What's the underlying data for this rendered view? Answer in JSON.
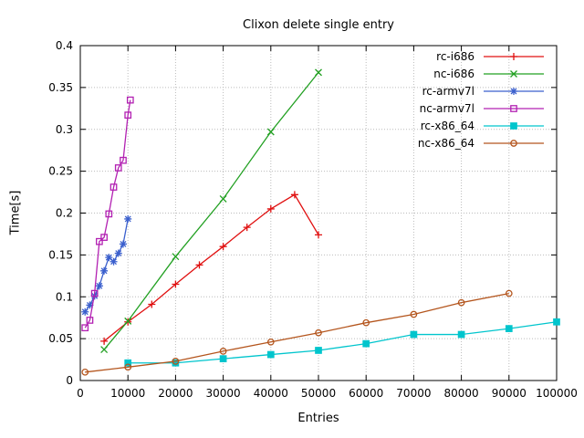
{
  "chart_data": {
    "type": "line",
    "title": "Clixon delete single entry",
    "xlabel": "Entries",
    "ylabel": "Time[s]",
    "xlim": [
      0,
      100000
    ],
    "ylim": [
      0,
      0.4
    ],
    "grid": true,
    "legend_position": "top-right-inside",
    "xticks": {
      "values": [
        0,
        10000,
        20000,
        30000,
        40000,
        50000,
        60000,
        70000,
        80000,
        90000,
        100000
      ],
      "labels": [
        "0",
        "10000",
        "20000",
        "30000",
        "40000",
        "50000",
        "60000",
        "70000",
        "80000",
        "90000",
        "100000"
      ]
    },
    "yticks": {
      "values": [
        0,
        0.05,
        0.1,
        0.15,
        0.2,
        0.25,
        0.3,
        0.35,
        0.4
      ],
      "labels": [
        "0",
        "0.05",
        "0.1",
        "0.15",
        "0.2",
        "0.25",
        "0.3",
        "0.35",
        "0.4"
      ]
    },
    "series": [
      {
        "name": "rc-i686",
        "color": "#e01010",
        "marker": "plus",
        "x": [
          5000,
          10000,
          15000,
          20000,
          25000,
          30000,
          35000,
          40000,
          45000,
          50000
        ],
        "y": [
          0.047,
          0.07,
          0.091,
          0.115,
          0.138,
          0.16,
          0.183,
          0.205,
          0.222,
          0.174
        ]
      },
      {
        "name": "nc-i686",
        "color": "#22a022",
        "marker": "cross",
        "x": [
          5000,
          10000,
          20000,
          30000,
          40000,
          50000
        ],
        "y": [
          0.037,
          0.071,
          0.148,
          0.217,
          0.297,
          0.368
        ]
      },
      {
        "name": "rc-armv7l",
        "color": "#3a5fcd",
        "marker": "asterisk",
        "x": [
          1000,
          2000,
          3000,
          4000,
          5000,
          6000,
          7000,
          8000,
          9000,
          10000
        ],
        "y": [
          0.082,
          0.09,
          0.101,
          0.113,
          0.131,
          0.147,
          0.142,
          0.152,
          0.163,
          0.193
        ]
      },
      {
        "name": "nc-armv7l",
        "color": "#b220b2",
        "marker": "square-open",
        "x": [
          1000,
          2000,
          3000,
          4000,
          5000,
          6000,
          7000,
          8000,
          9000,
          10000,
          10500
        ],
        "y": [
          0.063,
          0.072,
          0.104,
          0.166,
          0.171,
          0.199,
          0.231,
          0.254,
          0.263,
          0.317,
          0.335
        ]
      },
      {
        "name": "rc-x86_64",
        "color": "#00c5cd",
        "marker": "square-filled",
        "x": [
          10000,
          20000,
          30000,
          40000,
          50000,
          60000,
          70000,
          80000,
          90000,
          100000
        ],
        "y": [
          0.021,
          0.021,
          0.026,
          0.031,
          0.036,
          0.044,
          0.055,
          0.055,
          0.062,
          0.07
        ]
      },
      {
        "name": "nc-x86_64",
        "color": "#b4551d",
        "marker": "circle-open",
        "x": [
          1000,
          10000,
          20000,
          30000,
          40000,
          50000,
          60000,
          70000,
          80000,
          90000
        ],
        "y": [
          0.01,
          0.016,
          0.023,
          0.035,
          0.046,
          0.057,
          0.069,
          0.079,
          0.093,
          0.104
        ]
      }
    ]
  }
}
